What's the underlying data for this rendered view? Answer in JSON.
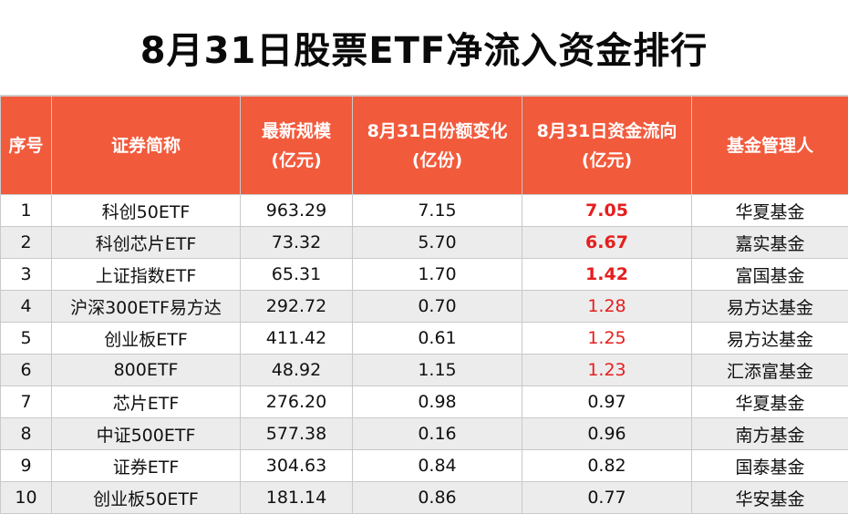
{
  "title": "8月31日股票ETF净流入资金排行",
  "headers": {
    "seq": [
      "序号"
    ],
    "name": [
      "证券简称"
    ],
    "scale": [
      "最新规模",
      "(亿元)"
    ],
    "share": [
      "8月31日份额变化",
      "(亿份)"
    ],
    "flow": [
      "8月31日资金流向",
      "(亿元)"
    ],
    "manager": [
      "基金管理人"
    ]
  },
  "rows": [
    {
      "seq": "1",
      "name": "科创50ETF",
      "scale": "963.29",
      "share": "7.15",
      "flow": "7.05",
      "manager": "华夏基金"
    },
    {
      "seq": "2",
      "name": "科创芯片ETF",
      "scale": "73.32",
      "share": "5.70",
      "flow": "6.67",
      "manager": "嘉实基金"
    },
    {
      "seq": "3",
      "name": "上证指数ETF",
      "scale": "65.31",
      "share": "1.70",
      "flow": "1.42",
      "manager": "富国基金"
    },
    {
      "seq": "4",
      "name": "沪深300ETF易方达",
      "scale": "292.72",
      "share": "0.70",
      "flow": "1.28",
      "manager": "易方达基金"
    },
    {
      "seq": "5",
      "name": "创业板ETF",
      "scale": "411.42",
      "share": "0.61",
      "flow": "1.25",
      "manager": "易方达基金"
    },
    {
      "seq": "6",
      "name": "800ETF",
      "scale": "48.92",
      "share": "1.15",
      "flow": "1.23",
      "manager": "汇添富基金"
    },
    {
      "seq": "7",
      "name": "芯片ETF",
      "scale": "276.20",
      "share": "0.98",
      "flow": "0.97",
      "manager": "华夏基金"
    },
    {
      "seq": "8",
      "name": "中证500ETF",
      "scale": "577.38",
      "share": "0.16",
      "flow": "0.96",
      "manager": "南方基金"
    },
    {
      "seq": "9",
      "name": "证券ETF",
      "scale": "304.63",
      "share": "0.84",
      "flow": "0.82",
      "manager": "国泰基金"
    },
    {
      "seq": "10",
      "name": "创业板50ETF",
      "scale": "181.14",
      "share": "0.86",
      "flow": "0.77",
      "manager": "华安基金"
    }
  ],
  "colors": {
    "header_bg": "#f25a3c",
    "flow_highlight": "#e61e1e",
    "row_alt": "#ececec"
  }
}
